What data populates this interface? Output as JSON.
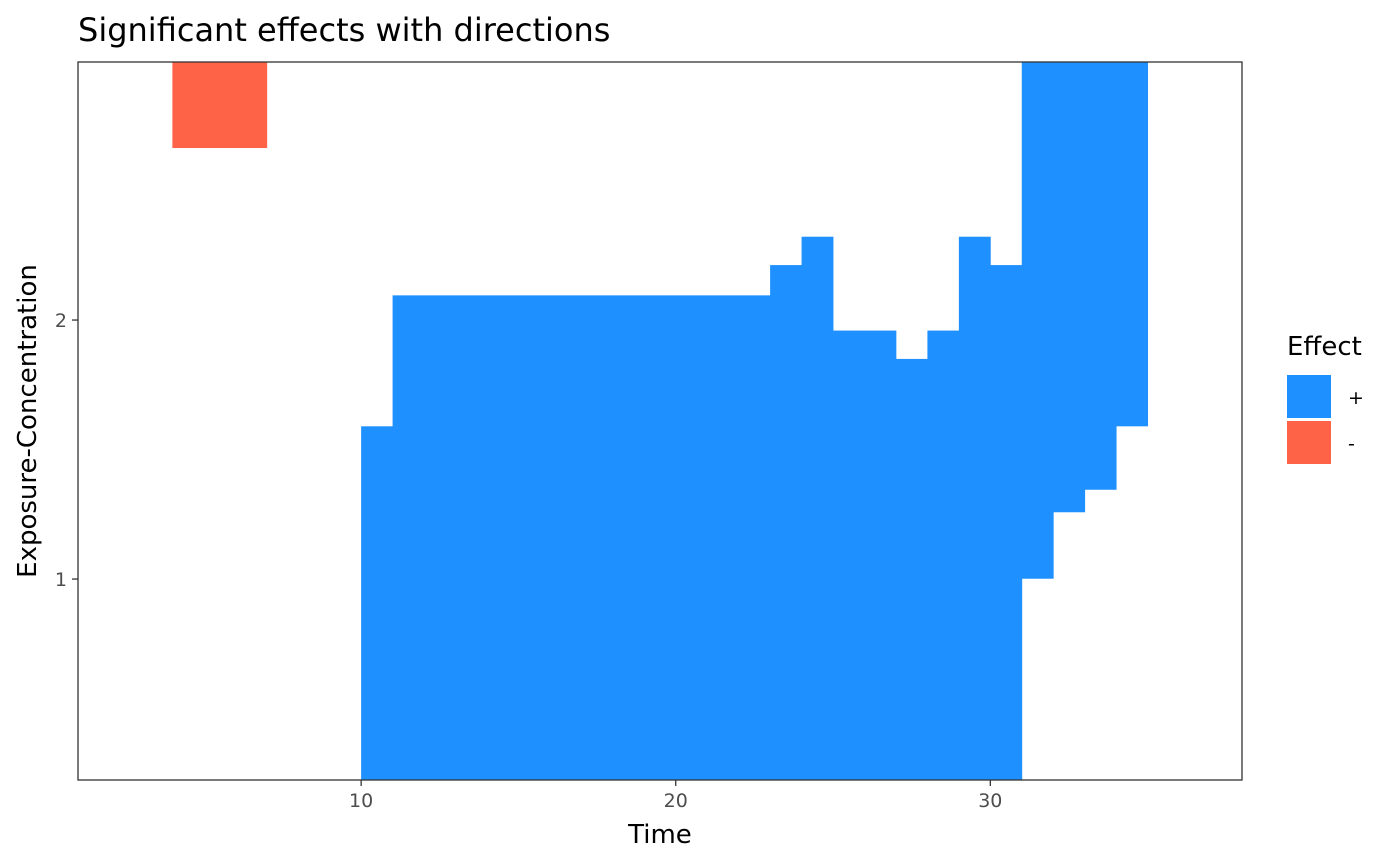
{
  "chart_data": {
    "type": "heatmap",
    "title": "Significant effects with directions",
    "xlabel": "Time",
    "ylabel": "Exposure-Concentration",
    "xlim": [
      1,
      38
    ],
    "ylim": [
      0.2241,
      2.9963
    ],
    "x_ticks": [
      10,
      20,
      30
    ],
    "y_ticks": [
      1,
      2
    ],
    "grid": false,
    "legend": {
      "title": "Effect",
      "position": "right",
      "entries": [
        {
          "label": "+",
          "color": "#1e90ff"
        },
        {
          "label": "-",
          "color": "#ff6347"
        }
      ]
    },
    "series": [
      {
        "name": "-",
        "color": "#ff6347",
        "columns": [
          {
            "x0": 4,
            "x1": 7,
            "y_low": 2.6641,
            "y_high": 2.9963
          }
        ]
      },
      {
        "name": "+",
        "color": "#1e90ff",
        "columns": [
          {
            "x0": 10,
            "x1": 11,
            "y_low": 0.2241,
            "y_high": 1.5897
          },
          {
            "x0": 11,
            "x1": 23,
            "y_low": 0.2241,
            "y_high": 2.0953
          },
          {
            "x0": 23,
            "x1": 24,
            "y_low": 0.2241,
            "y_high": 2.2122
          },
          {
            "x0": 24,
            "x1": 25,
            "y_low": 0.2241,
            "y_high": 2.3217
          },
          {
            "x0": 25,
            "x1": 27,
            "y_low": 0.2241,
            "y_high": 1.9594
          },
          {
            "x0": 27,
            "x1": 28,
            "y_low": 0.2241,
            "y_high": 1.8499
          },
          {
            "x0": 28,
            "x1": 29,
            "y_low": 0.2241,
            "y_high": 1.9594
          },
          {
            "x0": 29,
            "x1": 30,
            "y_low": 0.2241,
            "y_high": 2.3217
          },
          {
            "x0": 30,
            "x1": 31,
            "y_low": 0.2241,
            "y_high": 2.2122
          },
          {
            "x0": 31,
            "x1": 32,
            "y_low": 1.0012,
            "y_high": 2.9963
          },
          {
            "x0": 32,
            "x1": 33,
            "y_low": 1.2578,
            "y_high": 2.9963
          },
          {
            "x0": 33,
            "x1": 34,
            "y_low": 1.3447,
            "y_high": 2.9963
          },
          {
            "x0": 34,
            "x1": 35,
            "y_low": 1.5897,
            "y_high": 2.9963
          }
        ]
      }
    ]
  }
}
